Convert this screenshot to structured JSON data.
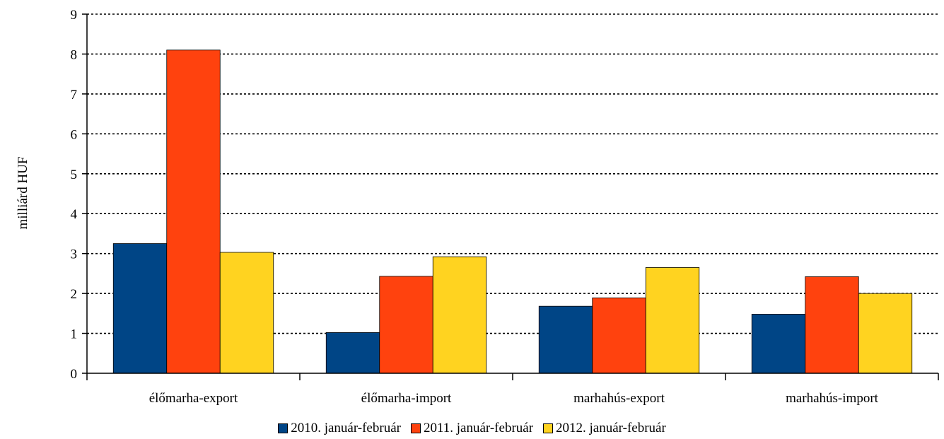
{
  "chart_data": {
    "type": "bar",
    "title": "",
    "xlabel": "",
    "ylabel": "milliárd HUF",
    "ylim": [
      0,
      9
    ],
    "yticks": [
      "0",
      "1",
      "2",
      "3",
      "4",
      "5",
      "6",
      "7",
      "8",
      "9"
    ],
    "grid": true,
    "legend_position": "bottom",
    "categories": [
      "élőmarha-export",
      "élőmarha-import",
      "marhahús-export",
      "marhahús-import"
    ],
    "series": [
      {
        "name": "2010. január-február",
        "color": "#004586",
        "values": [
          3.25,
          1.02,
          1.68,
          1.48
        ]
      },
      {
        "name": "2011. január-február",
        "color": "#ff420e",
        "values": [
          8.1,
          2.43,
          1.89,
          2.42
        ]
      },
      {
        "name": "2012. január-február",
        "color": "#ffd320",
        "values": [
          3.03,
          2.92,
          2.65,
          2.0
        ]
      }
    ]
  }
}
